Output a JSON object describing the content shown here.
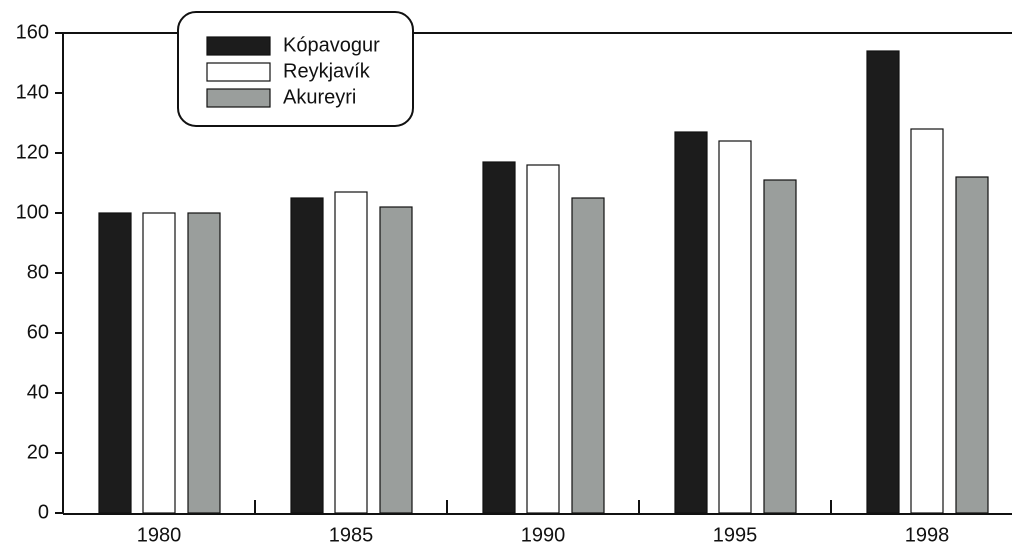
{
  "chart_data": {
    "type": "bar",
    "categories": [
      "1980",
      "1985",
      "1990",
      "1995",
      "1998"
    ],
    "series": [
      {
        "name": "Kópavogur",
        "color": "#1c1c1c",
        "values": [
          100,
          105,
          117,
          127,
          154
        ]
      },
      {
        "name": "Reykjavík",
        "color": "#ffffff",
        "values": [
          100,
          107,
          116,
          124,
          128
        ]
      },
      {
        "name": "Akureyri",
        "color": "#9a9e9c",
        "values": [
          100,
          102,
          105,
          111,
          112
        ]
      }
    ],
    "ylim": [
      0,
      160
    ],
    "yticks": [
      0,
      20,
      40,
      60,
      80,
      100,
      120,
      140,
      160
    ],
    "legend": "top-left"
  }
}
